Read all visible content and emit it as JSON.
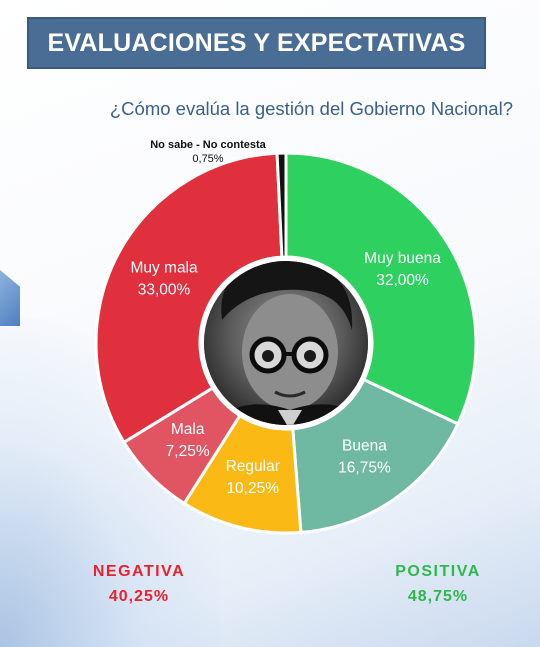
{
  "header": {
    "title": "EVALUACIONES Y EXPECTATIVAS"
  },
  "question": "¿Cómo evalúa la gestión del Gobierno Nacional?",
  "summary": {
    "negative": {
      "label": "NEGATIVA",
      "value": "40,25%",
      "color": "#e8232f"
    },
    "positive": {
      "label": "POSITIVA",
      "value": "48,75%",
      "color": "#2eb84b"
    }
  },
  "chart_data": {
    "type": "pie",
    "style": "donut",
    "title": "¿Cómo evalúa la gestión del Gobierno Nacional?",
    "start": "top, clockwise",
    "slices": [
      {
        "label": "Muy buena",
        "value": 32.0,
        "display": "32,00%",
        "color": "#2ed15f",
        "text_color": "#ffffff"
      },
      {
        "label": "Buena",
        "value": 16.75,
        "display": "16,75%",
        "color": "#6fb8a2",
        "text_color": "#ffffff"
      },
      {
        "label": "Regular",
        "value": 10.25,
        "display": "10,25%",
        "color": "#fbb915",
        "text_color": "#ffffff"
      },
      {
        "label": "Mala",
        "value": 7.25,
        "display": "7,25%",
        "color": "#e05561",
        "text_color": "#ffffff"
      },
      {
        "label": "Muy mala",
        "value": 33.0,
        "display": "33,00%",
        "color": "#e0303e",
        "text_color": "#ffffff"
      },
      {
        "label": "No sabe - No contesta",
        "value": 0.75,
        "display": "0,75%",
        "color": "#111111",
        "text_color": "#111111",
        "label_outside": true
      }
    ]
  },
  "center_image": {
    "icon": "portrait-photo",
    "description_shown": false
  }
}
